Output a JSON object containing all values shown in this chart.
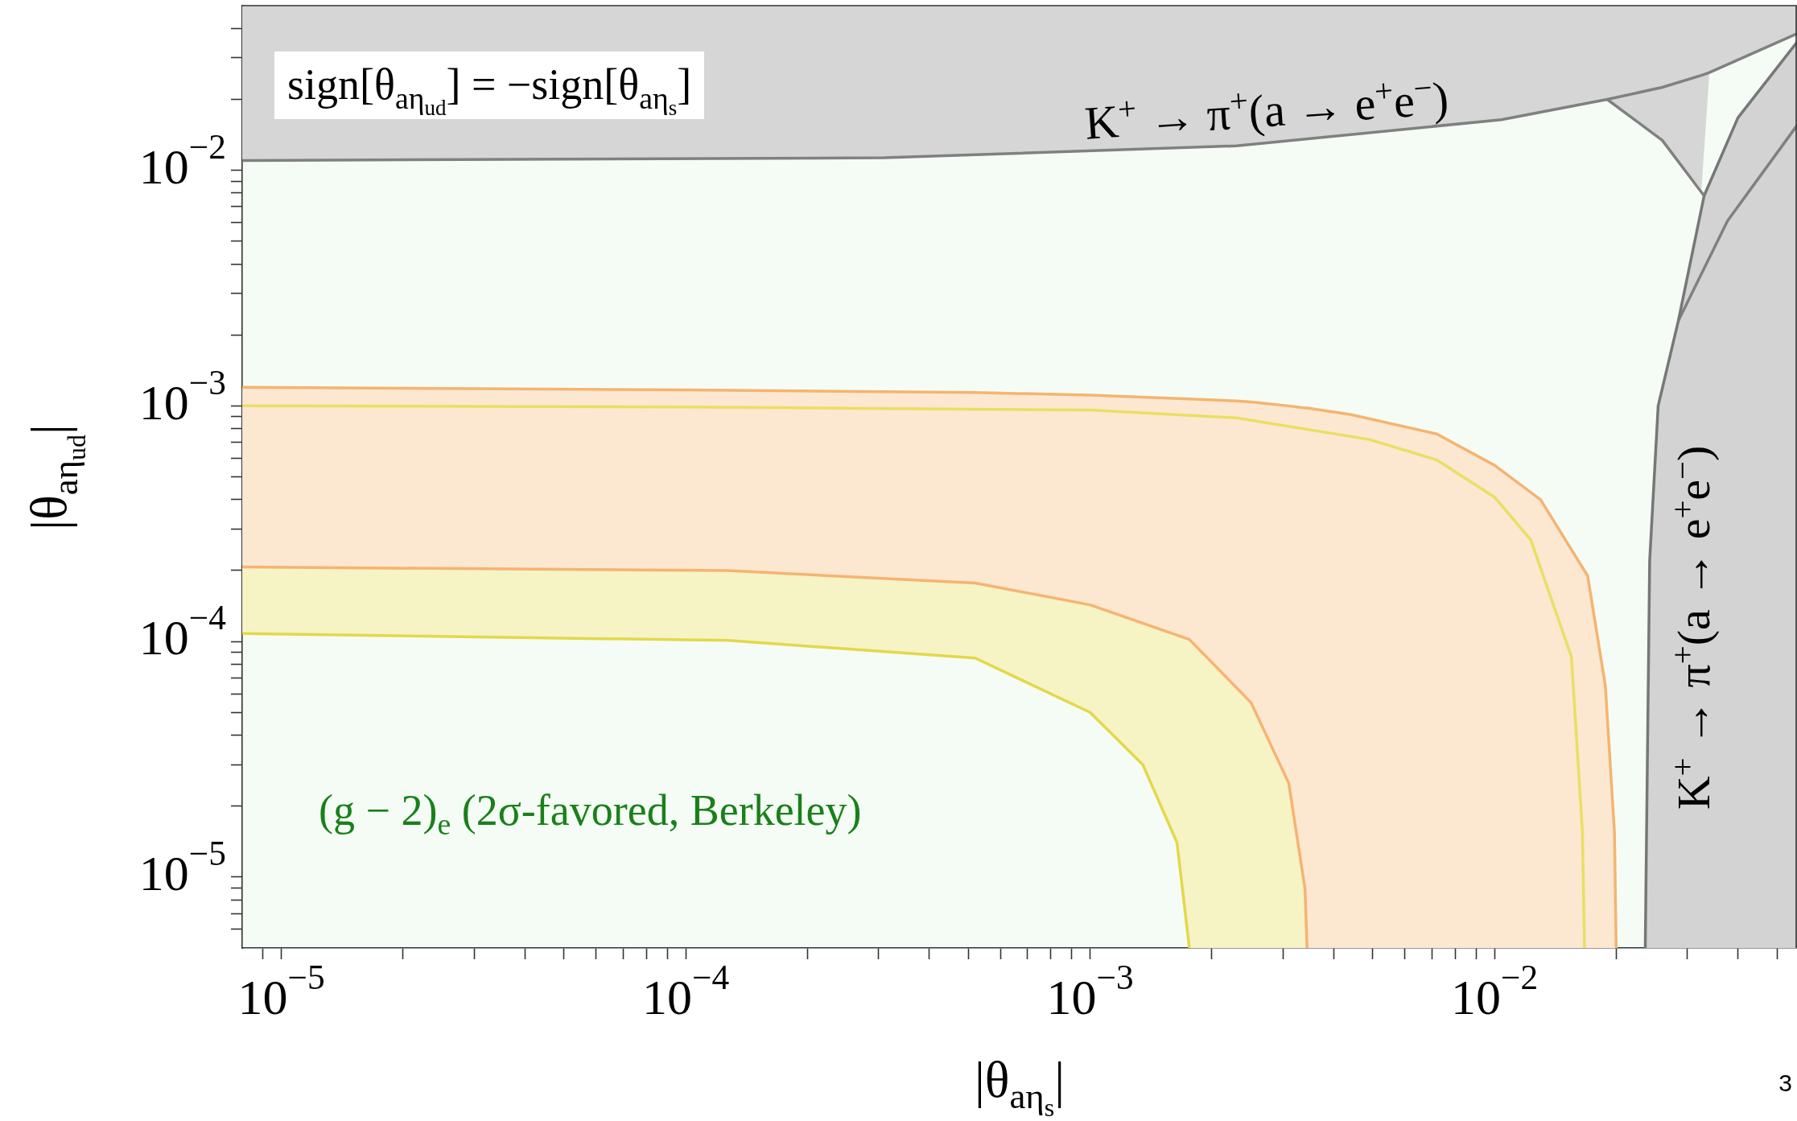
{
  "chart_data": {
    "type": "line",
    "xlabel": "|θ$_{aη}$$_{s}$|",
    "ylabel": "|θ$_{aη}$$_{ud}$|",
    "log": "xy",
    "legend": false,
    "xlim": [
      8e-06,
      0.056
    ],
    "ylim": [
      5e-06,
      0.05
    ],
    "xticks": [
      {
        "value": 9e-06,
        "label": null
      },
      {
        "value": 1e-05,
        "label": "10$^{−5}$"
      },
      {
        "value": 2e-05,
        "label": null
      },
      {
        "value": 3e-05,
        "label": null
      },
      {
        "value": 4e-05,
        "label": null
      },
      {
        "value": 5e-05,
        "label": null
      },
      {
        "value": 6e-05,
        "label": null
      },
      {
        "value": 7e-05,
        "label": null
      },
      {
        "value": 8e-05,
        "label": null
      },
      {
        "value": 9e-05,
        "label": null
      },
      {
        "value": 0.0001,
        "label": "10$^{−4}$"
      },
      {
        "value": 0.0002,
        "label": null
      },
      {
        "value": 0.0003,
        "label": null
      },
      {
        "value": 0.0004,
        "label": null
      },
      {
        "value": 0.0005,
        "label": null
      },
      {
        "value": 0.0006,
        "label": null
      },
      {
        "value": 0.0007,
        "label": null
      },
      {
        "value": 0.0008,
        "label": null
      },
      {
        "value": 0.0009,
        "label": null
      },
      {
        "value": 0.001,
        "label": "10$^{−3}$"
      },
      {
        "value": 0.002,
        "label": null
      },
      {
        "value": 0.003,
        "label": null
      },
      {
        "value": 0.004,
        "label": null
      },
      {
        "value": 0.005,
        "label": null
      },
      {
        "value": 0.006,
        "label": null
      },
      {
        "value": 0.007,
        "label": null
      },
      {
        "value": 0.008,
        "label": null
      },
      {
        "value": 0.009,
        "label": null
      },
      {
        "value": 0.01,
        "label": "10$^{−2}$"
      },
      {
        "value": 0.02,
        "label": null
      },
      {
        "value": 0.03,
        "label": null
      },
      {
        "value": 0.04,
        "label": null
      },
      {
        "value": 0.05,
        "label": null
      }
    ],
    "yticks": [
      {
        "value": 6e-06,
        "label": null
      },
      {
        "value": 7e-06,
        "label": null
      },
      {
        "value": 8e-06,
        "label": null
      },
      {
        "value": 9e-06,
        "label": null
      },
      {
        "value": 1e-05,
        "label": "10$^{−5}$"
      },
      {
        "value": 2e-05,
        "label": null
      },
      {
        "value": 3e-05,
        "label": null
      },
      {
        "value": 4e-05,
        "label": null
      },
      {
        "value": 5e-05,
        "label": null
      },
      {
        "value": 6e-05,
        "label": null
      },
      {
        "value": 7e-05,
        "label": null
      },
      {
        "value": 8e-05,
        "label": null
      },
      {
        "value": 9e-05,
        "label": null
      },
      {
        "value": 0.0001,
        "label": "10$^{−4}$"
      },
      {
        "value": 0.0002,
        "label": null
      },
      {
        "value": 0.0003,
        "label": null
      },
      {
        "value": 0.0004,
        "label": null
      },
      {
        "value": 0.0005,
        "label": null
      },
      {
        "value": 0.0006,
        "label": null
      },
      {
        "value": 0.0007,
        "label": null
      },
      {
        "value": 0.0008,
        "label": null
      },
      {
        "value": 0.0009,
        "label": null
      },
      {
        "value": 0.001,
        "label": "10$^{−3}$"
      },
      {
        "value": 0.002,
        "label": null
      },
      {
        "value": 0.003,
        "label": null
      },
      {
        "value": 0.004,
        "label": null
      },
      {
        "value": 0.005,
        "label": null
      },
      {
        "value": 0.006,
        "label": null
      },
      {
        "value": 0.007,
        "label": null
      },
      {
        "value": 0.008,
        "label": null
      },
      {
        "value": 0.009,
        "label": null
      },
      {
        "value": 0.01,
        "label": "10$^{−2}$"
      },
      {
        "value": 0.02,
        "label": null
      },
      {
        "value": 0.03,
        "label": null
      },
      {
        "value": 0.04,
        "label": null
      }
    ],
    "series": [
      {
        "color": "#808080",
        "x": [
          8e-06,
          0.00031,
          0.0023,
          0.0104,
          0.019,
          0.026,
          0.0325,
          0.034,
          0.056
        ],
        "values": [
          0.011,
          0.0113,
          0.0127,
          0.0164,
          0.02,
          0.0225,
          0.0253,
          0.026,
          0.038
        ],
        "lower": [
          0.011,
          0.0113,
          0.0127,
          0.0164,
          0.02,
          0.0134,
          0.0083,
          0.026,
          0.038
        ],
        "upper": [
          0.05,
          0.05,
          0.05,
          0.05,
          0.05,
          0.05,
          0.05,
          0.05,
          0.05
        ]
      },
      {
        "color": "#808080",
        "x": [
          0.019,
          0.026,
          0.033
        ],
        "values": [
          0.02,
          0.0134,
          0.0078
        ]
      },
      {
        "color": "#777777",
        "x": [
          0.0236,
          0.0242,
          0.0254,
          0.0285,
          0.033,
          0.04,
          0.056
        ],
        "values": [
          5e-06,
          0.00022,
          0.001,
          0.0023,
          0.0078,
          0.0167,
          0.035
        ],
        "lower": [
          5e-06,
          5e-06,
          5e-06,
          5e-06,
          5e-06,
          5e-06,
          5e-06
        ],
        "upper": [
          5e-06,
          0.00022,
          0.001,
          0.0023,
          0.0078,
          0.0167,
          0.035
        ]
      },
      {
        "color": "#808080",
        "x": [
          0.0285,
          0.0377,
          0.056
        ],
        "values": [
          0.0023,
          0.0061,
          0.0155
        ]
      },
      {
        "color": "#f5b470",
        "x": [
          8e-06,
          0.0001,
          0.00052,
          0.001,
          0.00176,
          0.0023,
          0.0025,
          0.0031,
          0.0034,
          0.00344,
          0.0044,
          0.0072,
          0.01,
          0.013,
          0.017,
          0.0188,
          0.0198,
          0.02
        ],
        "values": [
          0.0012,
          0.00117,
          0.00114,
          0.00111,
          0.00107,
          0.00105,
          0.00104,
          0.001,
          0.00098,
          0.00098,
          0.00092,
          0.00076,
          0.00056,
          0.0004,
          0.00019,
          6.5e-05,
          1.56e-05,
          5e-06
        ],
        "lower": [
          0.000207,
          0.0002,
          0.000177,
          0.000143,
          0.000102,
          6.5e-05,
          5.5e-05,
          2.5e-05,
          8.9e-06,
          5e-06,
          5e-06,
          5e-06,
          5e-06,
          5e-06,
          5e-06,
          5e-06,
          5e-06,
          5e-06
        ],
        "upper": [
          0.0012,
          0.00117,
          0.00114,
          0.00111,
          0.00107,
          0.00105,
          0.00104,
          0.001,
          0.00098,
          0.00098,
          0.00092,
          0.00076,
          0.00056,
          0.0004,
          0.00019,
          6.5e-05,
          1.56e-05,
          5e-06
        ]
      },
      {
        "color": "#e9df62",
        "x": [
          8e-06,
          0.0001,
          0.001,
          0.0023,
          0.0049,
          0.0072,
          0.01,
          0.0123,
          0.0155,
          0.0165,
          0.0167
        ],
        "values": [
          0.001,
          0.00099,
          0.00096,
          0.00089,
          0.00072,
          0.00059,
          0.00041,
          0.00027,
          8.6e-05,
          1.56e-05,
          5e-06
        ]
      },
      {
        "color": "#f5b470",
        "x": [
          8e-06,
          0.000127,
          0.00052,
          0.001,
          0.00176,
          0.0025,
          0.0031,
          0.0034,
          0.00344
        ],
        "values": [
          0.000207,
          0.0002,
          0.000177,
          0.000143,
          0.000102,
          5.5e-05,
          2.5e-05,
          8.9e-06,
          5e-06
        ]
      },
      {
        "color": "#e3d84a",
        "x": [
          8e-06,
          0.000127,
          0.00052,
          0.001,
          0.00135,
          0.00164,
          0.00176,
          0.0025,
          0.0031,
          0.0034,
          0.00344
        ],
        "values": [
          0.000108,
          0.000101,
          8.5e-05,
          5e-05,
          3e-05,
          1.4e-05,
          5e-06,
          null,
          null,
          null,
          null
        ],
        "lower": [
          0.000108,
          0.000101,
          8.5e-05,
          5e-05,
          3e-05,
          1.4e-05,
          5e-06,
          5e-06,
          5e-06,
          5e-06,
          5e-06
        ],
        "upper": [
          0.000207,
          0.0002,
          0.000177,
          0.000143,
          0.00012,
          0.000106,
          0.000102,
          5.5e-05,
          2.5e-05,
          8.9e-06,
          5e-06
        ]
      }
    ],
    "annotations": [
      "sign[θ$_{aη}$$_{ud}$] = −sign[θ$_{aη}$$_{s}$]",
      "K$^{+}$ → π$^{+}$(a → e$^{+}$e$^{−}$)",
      "K$^{+}$ → π$^{+}$(a → e$^{+}$e$^{−}$)",
      "(g − 2)$_{e}$  (2σ-favored, Berkeley)",
      "3"
    ]
  }
}
